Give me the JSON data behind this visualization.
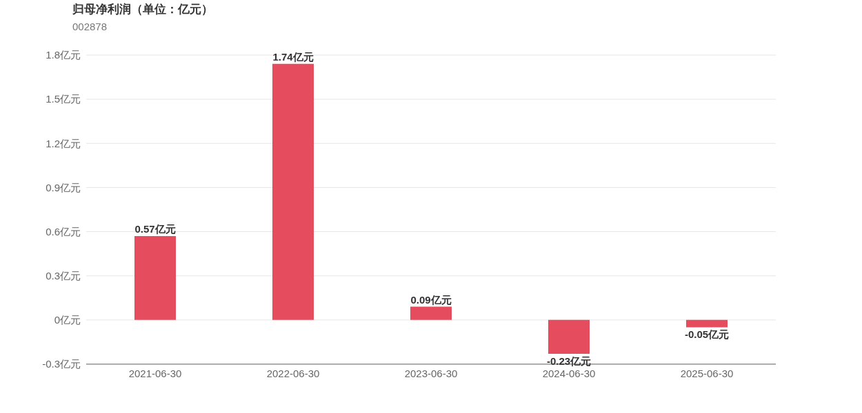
{
  "chart_data": {
    "type": "bar",
    "title": "归母净利润（单位：亿元）",
    "subtitle": "002878",
    "categories": [
      "2021-06-30",
      "2022-06-30",
      "2023-06-30",
      "2024-06-30",
      "2025-06-30"
    ],
    "values": [
      0.57,
      1.74,
      0.09,
      -0.23,
      -0.05
    ],
    "value_labels": [
      "0.57亿元",
      "1.74亿元",
      "0.09亿元",
      "-0.23亿元",
      "-0.05亿元"
    ],
    "color": "#e54d5e",
    "ylim": [
      -0.3,
      1.8
    ],
    "yticks": [
      {
        "value": -0.3,
        "label": "-0.3亿元"
      },
      {
        "value": 0,
        "label": "0亿元"
      },
      {
        "value": 0.3,
        "label": "0.3亿元"
      },
      {
        "value": 0.6,
        "label": "0.6亿元"
      },
      {
        "value": 0.9,
        "label": "0.9亿元"
      },
      {
        "value": 1.2,
        "label": "1.2亿元"
      },
      {
        "value": 1.5,
        "label": "1.5亿元"
      },
      {
        "value": 1.8,
        "label": "1.8亿元"
      }
    ],
    "grid": "y"
  }
}
